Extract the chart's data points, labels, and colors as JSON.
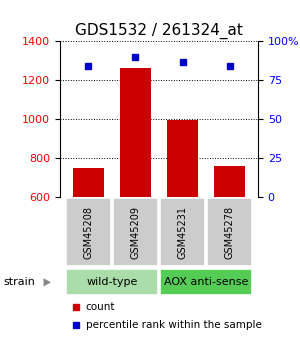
{
  "title": "GDS1532 / 261324_at",
  "samples": [
    "GSM45208",
    "GSM45209",
    "GSM45231",
    "GSM45278"
  ],
  "counts": [
    748,
    1261,
    998,
    762
  ],
  "percentiles": [
    84,
    90,
    87,
    84
  ],
  "ylim_left": [
    600,
    1400
  ],
  "ylim_right": [
    0,
    100
  ],
  "yticks_left": [
    600,
    800,
    1000,
    1200,
    1400
  ],
  "yticks_right": [
    0,
    25,
    50,
    75,
    100
  ],
  "yticklabels_right": [
    "0",
    "25",
    "50",
    "75",
    "100%"
  ],
  "bar_color": "#cc0000",
  "dot_color": "#0000cc",
  "bar_bottom": 600,
  "groups": [
    {
      "label": "wild-type",
      "indices": [
        0,
        1
      ],
      "color": "#aaddaa"
    },
    {
      "label": "AOX anti-sense",
      "indices": [
        2,
        3
      ],
      "color": "#55cc55"
    }
  ],
  "strain_label": "strain",
  "legend_count_label": "count",
  "legend_pct_label": "percentile rank within the sample",
  "sample_box_color": "#cccccc",
  "bg": "#ffffff",
  "title_fontsize": 11,
  "tick_fontsize": 8,
  "sample_fontsize": 7,
  "group_fontsize": 8,
  "legend_fontsize": 7.5
}
